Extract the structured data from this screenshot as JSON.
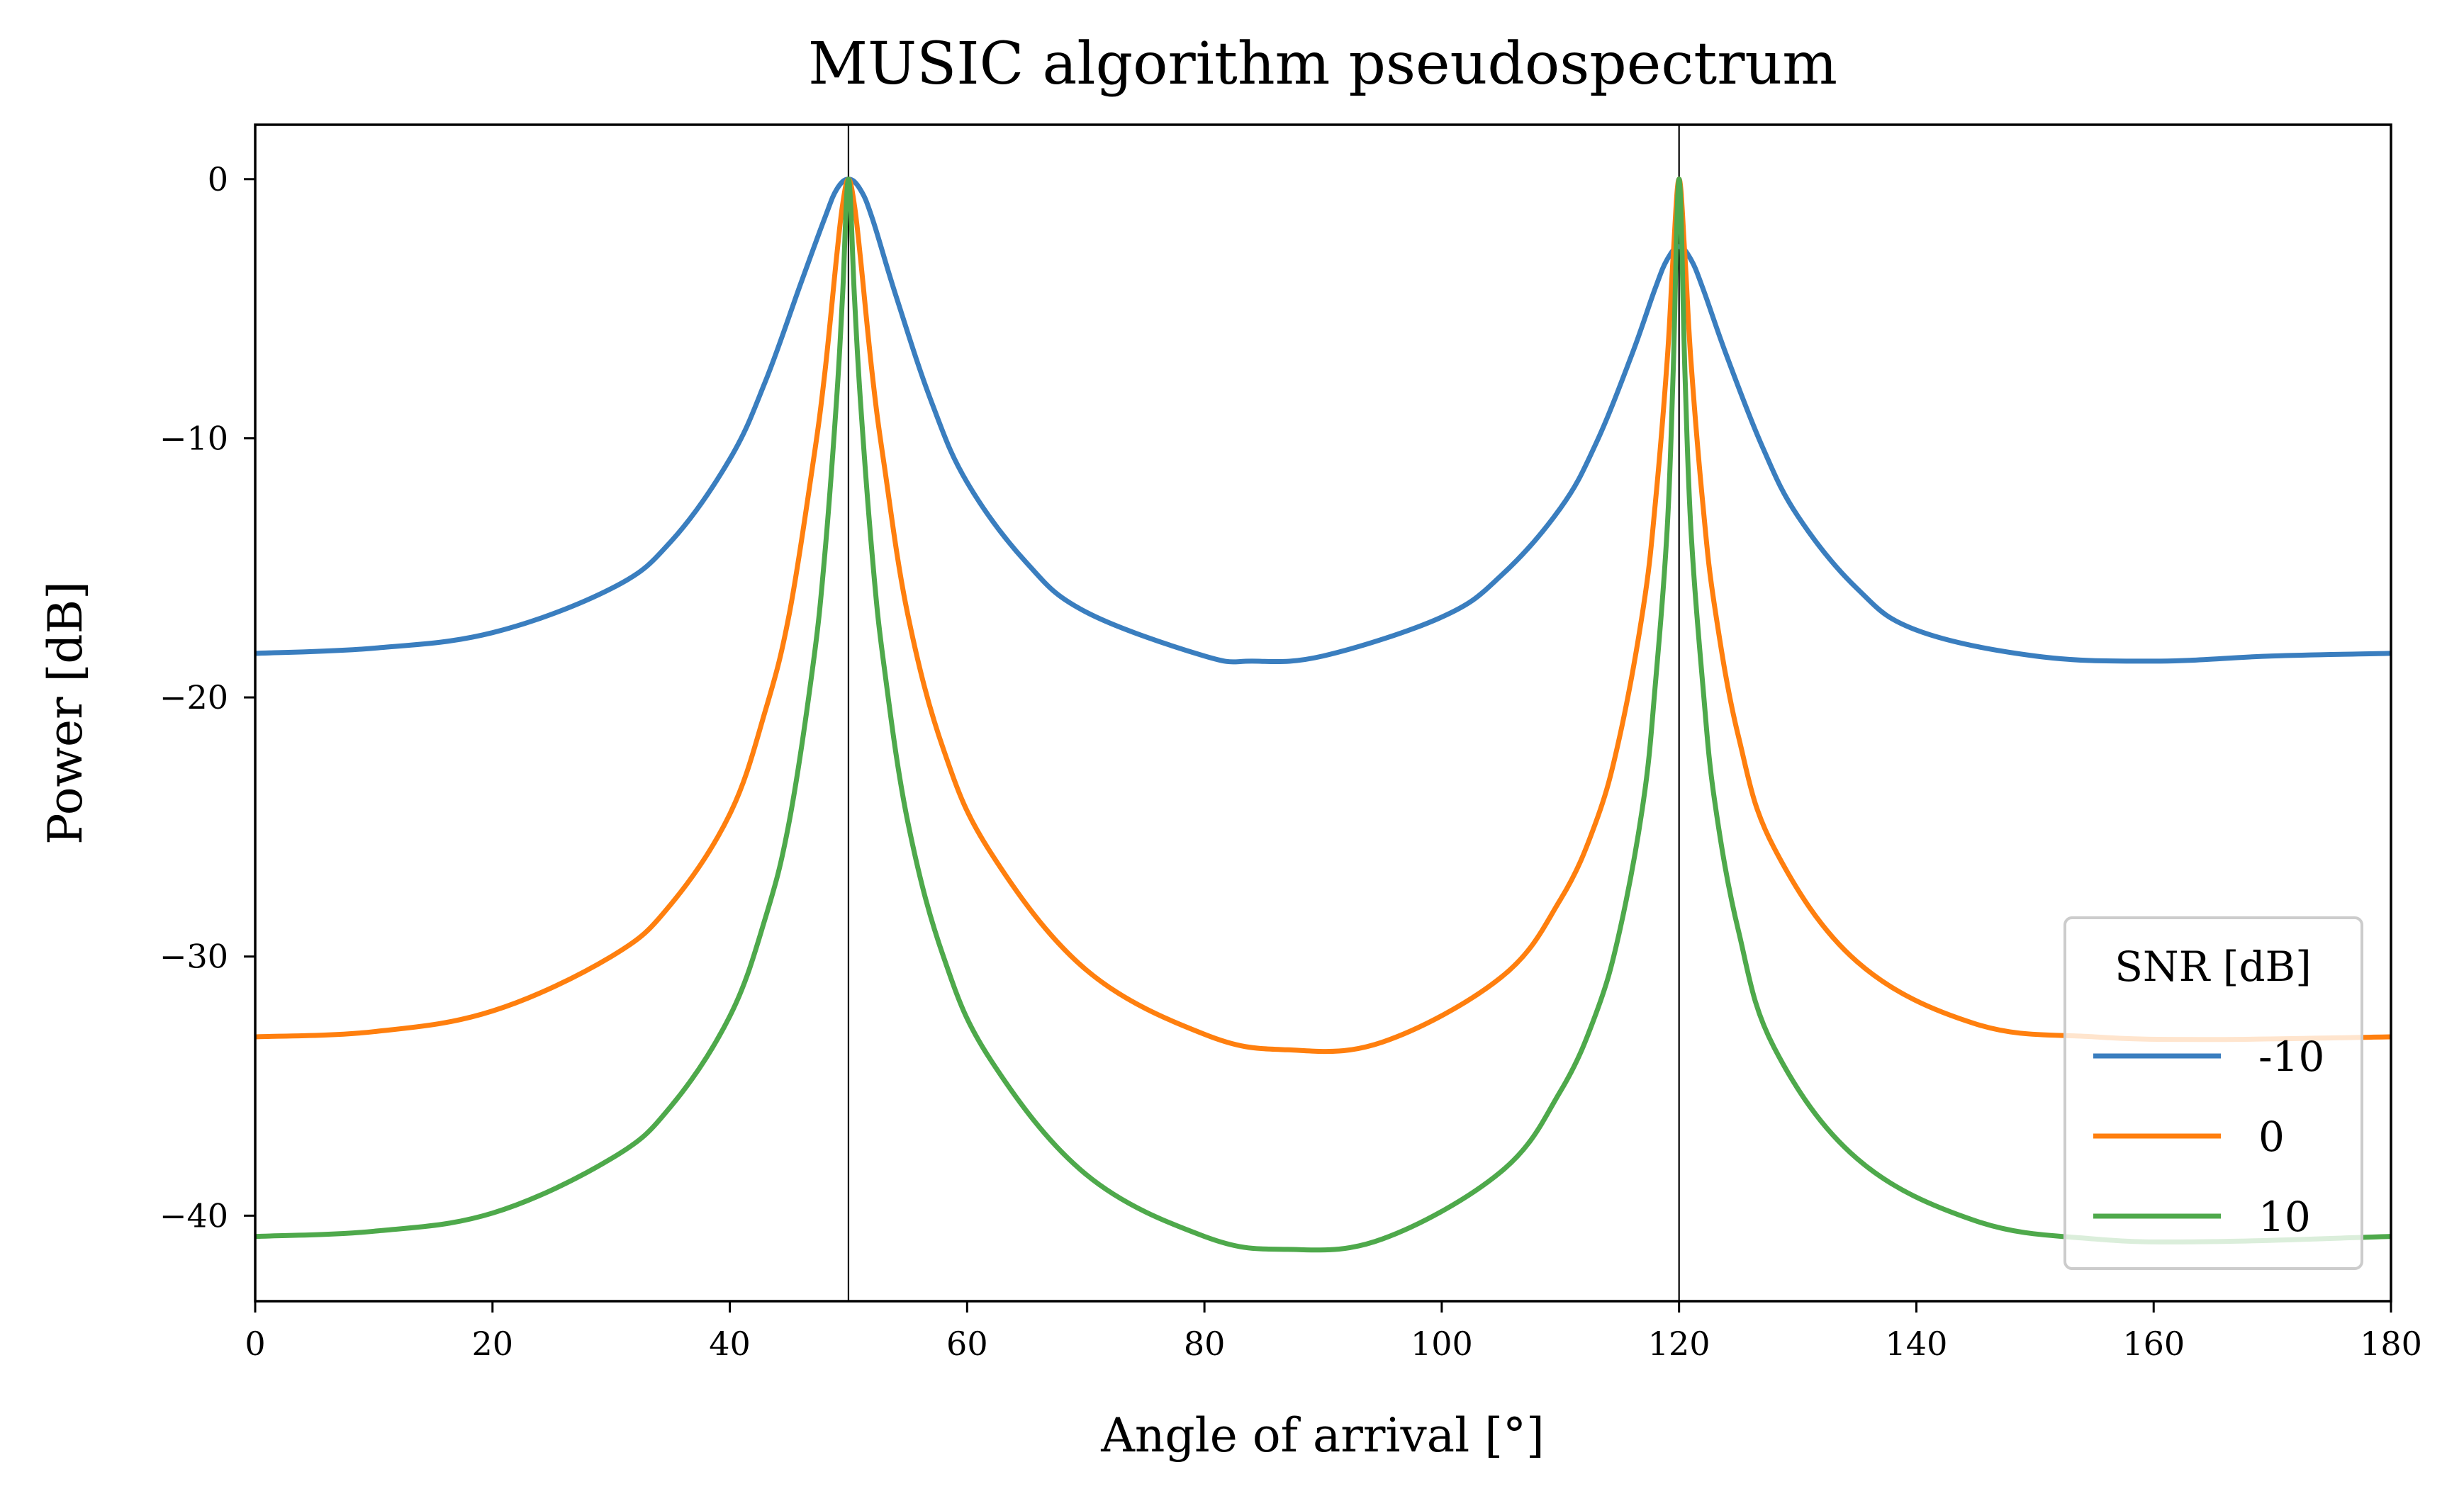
{
  "chart_data": {
    "type": "line",
    "title": "MUSIC algorithm pseudospectrum",
    "xlabel": "Angle of arrival [°]",
    "ylabel": "Power [dB]",
    "xlim": [
      0,
      180
    ],
    "ylim": [
      -43.3,
      2.1
    ],
    "xticks": [
      0,
      20,
      40,
      60,
      80,
      100,
      120,
      140,
      160,
      180
    ],
    "yticks": [
      0,
      -10,
      -20,
      -30,
      -40
    ],
    "ytick_labels": [
      "0",
      "−10",
      "−20",
      "−30",
      "−40"
    ],
    "grid": false,
    "vlines": [
      50,
      120
    ],
    "legend": {
      "title": "SNR [dB]",
      "placement": "lower-right",
      "entries": [
        "-10",
        "0",
        "10"
      ]
    },
    "series": [
      {
        "name": "-10",
        "color": "#3a7ebf",
        "x": [
          0,
          10,
          20,
          30,
          35,
          40,
          43,
          46,
          48,
          49,
          50,
          51,
          52,
          54,
          57,
          60,
          65,
          70,
          80,
          84,
          90,
          100,
          105,
          110,
          113,
          116,
          118,
          119,
          120,
          121,
          122,
          124,
          127,
          130,
          135,
          140,
          150,
          160,
          170,
          180
        ],
        "values": [
          -18.3,
          -18.1,
          -17.5,
          -15.8,
          -14.0,
          -10.8,
          -7.8,
          -4.0,
          -1.5,
          -0.4,
          0,
          -0.4,
          -1.5,
          -4.5,
          -8.6,
          -11.7,
          -14.8,
          -16.7,
          -18.4,
          -18.6,
          -18.4,
          -16.9,
          -15.3,
          -12.7,
          -10.2,
          -6.8,
          -4.2,
          -3.1,
          -2.6,
          -3.1,
          -4.2,
          -6.8,
          -10.3,
          -13.0,
          -15.8,
          -17.4,
          -18.4,
          -18.6,
          -18.4,
          -18.3
        ]
      },
      {
        "name": "0",
        "color": "#ff7f0e",
        "x": [
          0,
          10,
          20,
          30,
          35,
          40,
          43,
          45,
          47,
          48,
          49,
          49.5,
          50,
          50.5,
          51,
          52,
          53,
          55,
          58,
          62,
          70,
          80,
          87,
          95,
          105,
          110,
          113,
          115,
          117,
          118,
          119,
          119.5,
          120,
          120.5,
          121,
          122,
          123,
          125,
          128,
          135,
          145,
          155,
          165,
          180
        ],
        "values": [
          -33.1,
          -32.9,
          -32.1,
          -30.0,
          -28.0,
          -24.5,
          -20.5,
          -16.8,
          -11.0,
          -7.5,
          -3.0,
          -1.0,
          0,
          -1.0,
          -3.0,
          -7.5,
          -11.0,
          -16.8,
          -22.0,
          -26.0,
          -30.5,
          -33.0,
          -33.6,
          -33.3,
          -30.8,
          -27.8,
          -24.8,
          -21.5,
          -16.5,
          -12.5,
          -7.0,
          -3.0,
          0,
          -3.0,
          -7.0,
          -12.5,
          -16.5,
          -21.5,
          -25.8,
          -30.2,
          -32.6,
          -33.1,
          -33.2,
          -33.1
        ]
      },
      {
        "name": "10",
        "color": "#4ea94b",
        "x": [
          0,
          10,
          20,
          30,
          35,
          40,
          43,
          45,
          47,
          48,
          49,
          49.5,
          50,
          50.5,
          51,
          52,
          53,
          55,
          58,
          62,
          70,
          80,
          87,
          95,
          105,
          110,
          113,
          115,
          117,
          118,
          119,
          119.5,
          120,
          120.5,
          121,
          122,
          123,
          125,
          128,
          135,
          145,
          155,
          165,
          180
        ],
        "values": [
          -40.8,
          -40.6,
          -39.9,
          -37.8,
          -35.8,
          -32.3,
          -28.5,
          -24.8,
          -18.8,
          -14.5,
          -8.5,
          -4.5,
          0,
          -4.5,
          -8.5,
          -14.5,
          -18.8,
          -24.8,
          -30.0,
          -34.0,
          -38.4,
          -40.8,
          -41.3,
          -40.9,
          -38.3,
          -35.2,
          -32.2,
          -29.0,
          -24.0,
          -19.5,
          -13.5,
          -7.5,
          0,
          -7.5,
          -13.5,
          -19.5,
          -24.0,
          -29.0,
          -33.5,
          -37.8,
          -40.2,
          -40.9,
          -41.0,
          -40.8
        ]
      }
    ]
  }
}
